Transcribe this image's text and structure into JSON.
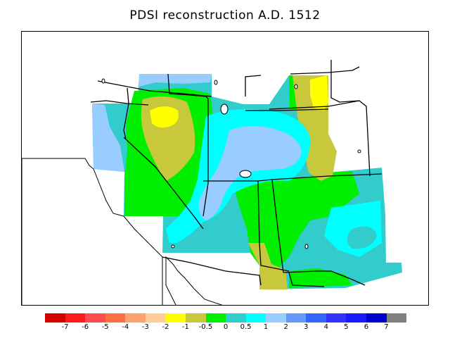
{
  "title": "PDSI reconstruction A.D. 1512",
  "legend": {
    "colors": [
      "#d40000",
      "#ff1a1a",
      "#ff4d4d",
      "#ff7040",
      "#ffa070",
      "#ffcc99",
      "#ffff00",
      "#c8c83c",
      "#00ee00",
      "#33cccc",
      "#00ffff",
      "#99ccff",
      "#6699ff",
      "#3366ff",
      "#3333ff",
      "#1a1aff",
      "#0000cc",
      "#808080"
    ],
    "labels": [
      "-7",
      "-6",
      "-5",
      "-4",
      "-3",
      "-2",
      "-1",
      "-0.5",
      "0",
      "0.5",
      "1",
      "2",
      "3",
      "4",
      "5",
      "6",
      "7"
    ]
  }
}
